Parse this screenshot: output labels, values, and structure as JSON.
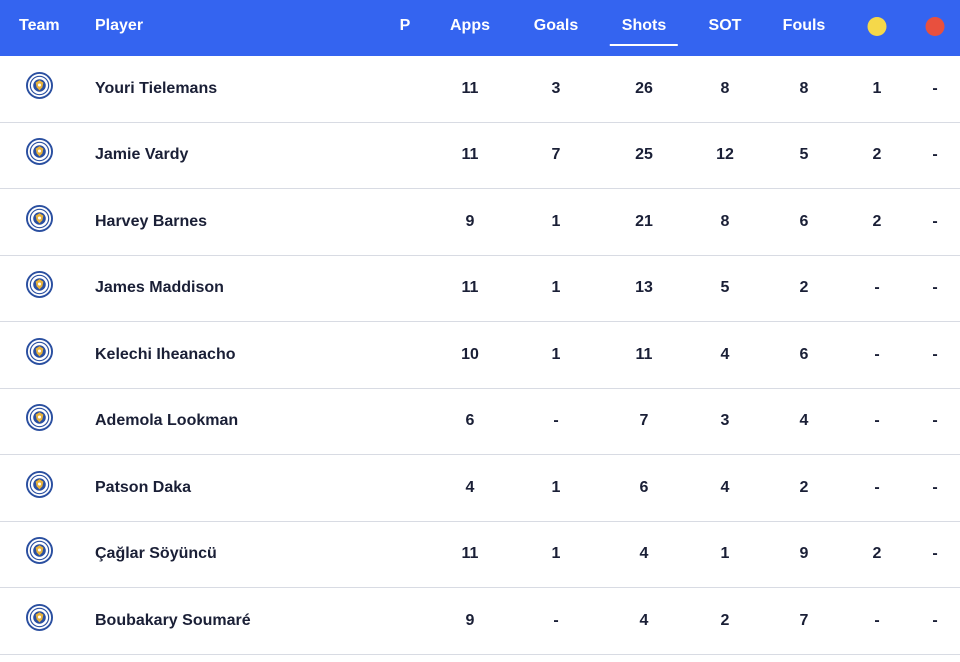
{
  "header": {
    "team": "Team",
    "player": "Player",
    "position": "P",
    "apps": "Apps",
    "goals": "Goals",
    "shots": "Shots",
    "sot": "SOT",
    "fouls": "Fouls",
    "yellow_icon": "yellow-card-icon",
    "red_icon": "red-card-icon",
    "active_sort": "Shots"
  },
  "colors": {
    "header_bg": "#3464f0",
    "yellow": "#f5d84a",
    "red": "#e8503e",
    "crest_blue": "#2a4fa0"
  },
  "rows": [
    {
      "player": "Youri Tielemans",
      "apps": "11",
      "goals": "3",
      "shots": "26",
      "sot": "8",
      "fouls": "8",
      "yellow": "1",
      "red": "-"
    },
    {
      "player": "Jamie Vardy",
      "apps": "11",
      "goals": "7",
      "shots": "25",
      "sot": "12",
      "fouls": "5",
      "yellow": "2",
      "red": "-"
    },
    {
      "player": "Harvey Barnes",
      "apps": "9",
      "goals": "1",
      "shots": "21",
      "sot": "8",
      "fouls": "6",
      "yellow": "2",
      "red": "-"
    },
    {
      "player": "James Maddison",
      "apps": "11",
      "goals": "1",
      "shots": "13",
      "sot": "5",
      "fouls": "2",
      "yellow": "-",
      "red": "-"
    },
    {
      "player": "Kelechi Iheanacho",
      "apps": "10",
      "goals": "1",
      "shots": "11",
      "sot": "4",
      "fouls": "6",
      "yellow": "-",
      "red": "-"
    },
    {
      "player": "Ademola Lookman",
      "apps": "6",
      "goals": "-",
      "shots": "7",
      "sot": "3",
      "fouls": "4",
      "yellow": "-",
      "red": "-"
    },
    {
      "player": "Patson Daka",
      "apps": "4",
      "goals": "1",
      "shots": "6",
      "sot": "4",
      "fouls": "2",
      "yellow": "-",
      "red": "-"
    },
    {
      "player": "Çağlar Söyüncü",
      "apps": "11",
      "goals": "1",
      "shots": "4",
      "sot": "1",
      "fouls": "9",
      "yellow": "2",
      "red": "-"
    },
    {
      "player": "Boubakary Soumaré",
      "apps": "9",
      "goals": "-",
      "shots": "4",
      "sot": "2",
      "fouls": "7",
      "yellow": "-",
      "red": "-"
    }
  ]
}
